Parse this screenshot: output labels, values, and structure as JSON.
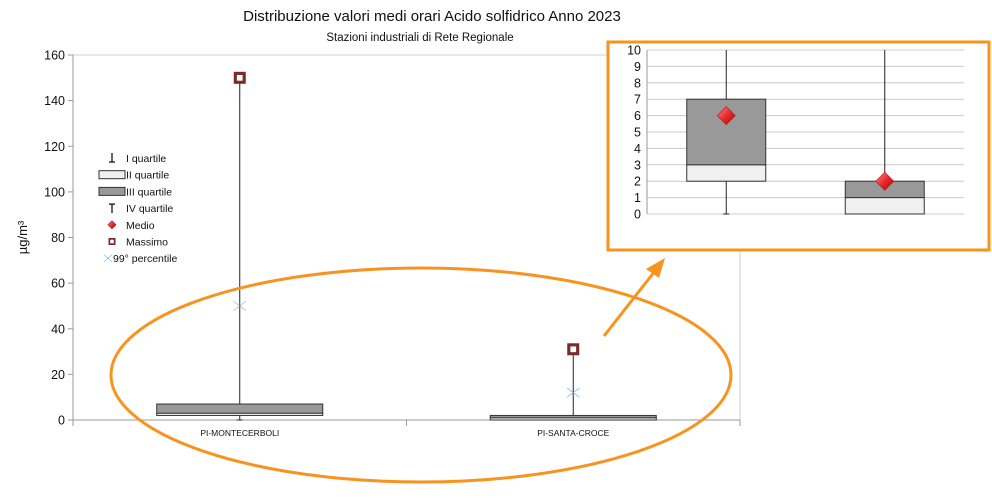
{
  "chart_data": {
    "type": "boxplot",
    "title": "Distribuzione valori medi orari Acido solfidrico Anno 2023",
    "subtitle": "Stazioni industriali di Rete Regionale",
    "ylabel": "µg/m³",
    "ylim": [
      0,
      160
    ],
    "yticks": [
      0,
      20,
      40,
      60,
      80,
      100,
      120,
      140,
      160
    ],
    "grid": false,
    "legend_position": "left",
    "categories": [
      "PI-MONTECERBOLI",
      "PI-SANTA-CROCE"
    ],
    "legend": [
      {
        "label": "I quartile",
        "marker": "whisker-low"
      },
      {
        "label": "II quartile",
        "marker": "box-light"
      },
      {
        "label": "III quartile",
        "marker": "box-dark"
      },
      {
        "label": "IV quartile",
        "marker": "whisker-high"
      },
      {
        "label": "Medio",
        "marker": "diamond"
      },
      {
        "label": "Massimo",
        "marker": "square"
      },
      {
        "label": "99° percentile",
        "marker": "bowtie"
      }
    ],
    "stations": [
      {
        "name": "PI-MONTECERBOLI",
        "min": 0,
        "q1": 2,
        "median": 3,
        "q3": 7,
        "mean": 6,
        "max": 150,
        "p99": 50
      },
      {
        "name": "PI-SANTA-CROCE",
        "min": 0,
        "q1": 0,
        "median": 1,
        "q3": 2,
        "mean": 2,
        "max": 31,
        "p99": 12
      }
    ],
    "inset": {
      "ylim": [
        0,
        10
      ],
      "yticks": [
        0,
        1,
        2,
        3,
        4,
        5,
        6,
        7,
        8,
        9,
        10
      ],
      "grid": true
    },
    "colors": {
      "box_light": "#f0f0f0",
      "box_dark": "#999999",
      "mean": "#e32525",
      "max": "#7b2a2a",
      "p99": "#6f9fd0",
      "highlight": "#f7931e",
      "axis": "#999999"
    }
  }
}
